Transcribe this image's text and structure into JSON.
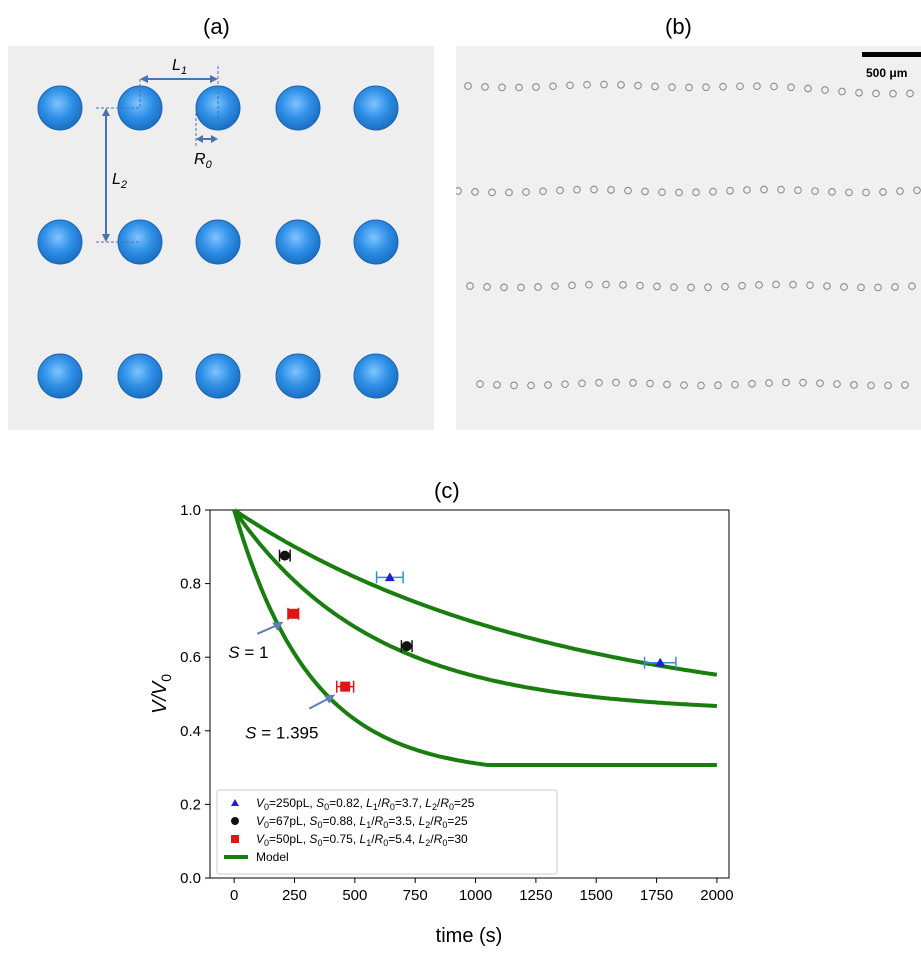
{
  "panels": {
    "a_label": "(a)",
    "b_label": "(b)",
    "c_label": "(c)"
  },
  "panel_a": {
    "label_L1": "L",
    "label_L1_sub": "1",
    "label_L2": "L",
    "label_L2_sub": "2",
    "label_R0": "R",
    "label_R0_sub": "0",
    "droplet_color": "#2f8fe6",
    "arrow_color": "#4a72b0",
    "rows": 3,
    "columns": 5
  },
  "panel_b": {
    "scale_bar_label": "500 μm",
    "rows": 4
  },
  "chart_data": {
    "type": "line",
    "xlabel": "time (s)",
    "ylabel": "V/V",
    "ylabel_sub": "0",
    "xlim": [
      -100,
      2050
    ],
    "ylim": [
      0.0,
      1.0
    ],
    "xticks": [
      0,
      250,
      500,
      750,
      1000,
      1250,
      1500,
      1750,
      2000
    ],
    "yticks": [
      0.0,
      0.2,
      0.4,
      0.6,
      0.8,
      1.0
    ],
    "xtick_labels": [
      "0",
      "250",
      "500",
      "750",
      "1000",
      "1250",
      "1500",
      "1750",
      "2000"
    ],
    "ytick_labels": [
      "0.0",
      "0.2",
      "0.4",
      "0.6",
      "0.8",
      "1.0"
    ],
    "grid": false,
    "legend_position": "bottom-left",
    "model_color": "#1a7d0f",
    "series": [
      {
        "name": "V0=250pL, S0=0.82, L1/R0=3.7, L2/R0=25",
        "legend": {
          "v": "V",
          "v_sub": "0",
          "v_val": "=250pL,",
          "s": "S",
          "s_sub": "0",
          "s_val": "=0.82,",
          "l1": "L",
          "l1_sub": "1",
          "r1": "R",
          "r1_sub": "0",
          "l1_val": "=3.7,",
          "l2": "L",
          "l2_sub": "2",
          "r2": "R",
          "r2_sub": "0",
          "l2_val": "=25"
        },
        "marker": "triangle",
        "color": "#1f1fcc",
        "errbar_color": "#3a8ccc",
        "points": [
          {
            "x": 645,
            "y": 0.817,
            "xerr": 55
          },
          {
            "x": 1765,
            "y": 0.585,
            "xerr": 65
          }
        ],
        "model": {
          "asymptote": 0.43,
          "tau": 1300
        }
      },
      {
        "name": "V0=67pL, S0=0.88, L1/R0=3.5, L2/R0=25",
        "legend": {
          "v": "V",
          "v_sub": "0",
          "v_val": "=67pL,",
          "s": "S",
          "s_sub": "0",
          "s_val": "=0.88,",
          "l1": "L",
          "l1_sub": "1",
          "r1": "R",
          "r1_sub": "0",
          "l1_val": "=3.5,",
          "l2": "L",
          "l2_sub": "2",
          "r2": "R",
          "r2_sub": "0",
          "l2_val": "=25"
        },
        "marker": "circle",
        "color": "#111111",
        "errbar_color": "#111111",
        "points": [
          {
            "x": 210,
            "y": 0.876,
            "xerr": 22
          },
          {
            "x": 715,
            "y": 0.63,
            "xerr": 22
          }
        ],
        "model": {
          "asymptote": 0.45,
          "tau": 580
        }
      },
      {
        "name": "V0=50pL, S0=0.75, L1/R0=5.4, L2/R0=30",
        "legend": {
          "v": "V",
          "v_sub": "0",
          "v_val": "=50pL,",
          "s": "S",
          "s_sub": "0",
          "s_val": "=0.75,",
          "l1": "L",
          "l1_sub": "1",
          "r1": "R",
          "r1_sub": "0",
          "l1_val": "=5.4,",
          "l2": "L",
          "l2_sub": "2",
          "r2": "R",
          "r2_sub": "0",
          "l2_val": "=30"
        },
        "marker": "square",
        "color": "#e01515",
        "errbar_color": "#e01515",
        "points": [
          {
            "x": 245,
            "y": 0.718,
            "xerr": 22
          },
          {
            "x": 460,
            "y": 0.52,
            "xerr": 35
          }
        ],
        "model": {
          "asymptote": 0.28,
          "tau": 320,
          "plateau_from": 1050
        }
      }
    ],
    "model_legend": "Model",
    "annotations": [
      {
        "text_var": "S",
        "text_val": " = 1",
        "x": 245,
        "y": 0.718
      },
      {
        "text_var": "S",
        "text_val": " = 1.395",
        "x": 460,
        "y": 0.52
      }
    ]
  }
}
